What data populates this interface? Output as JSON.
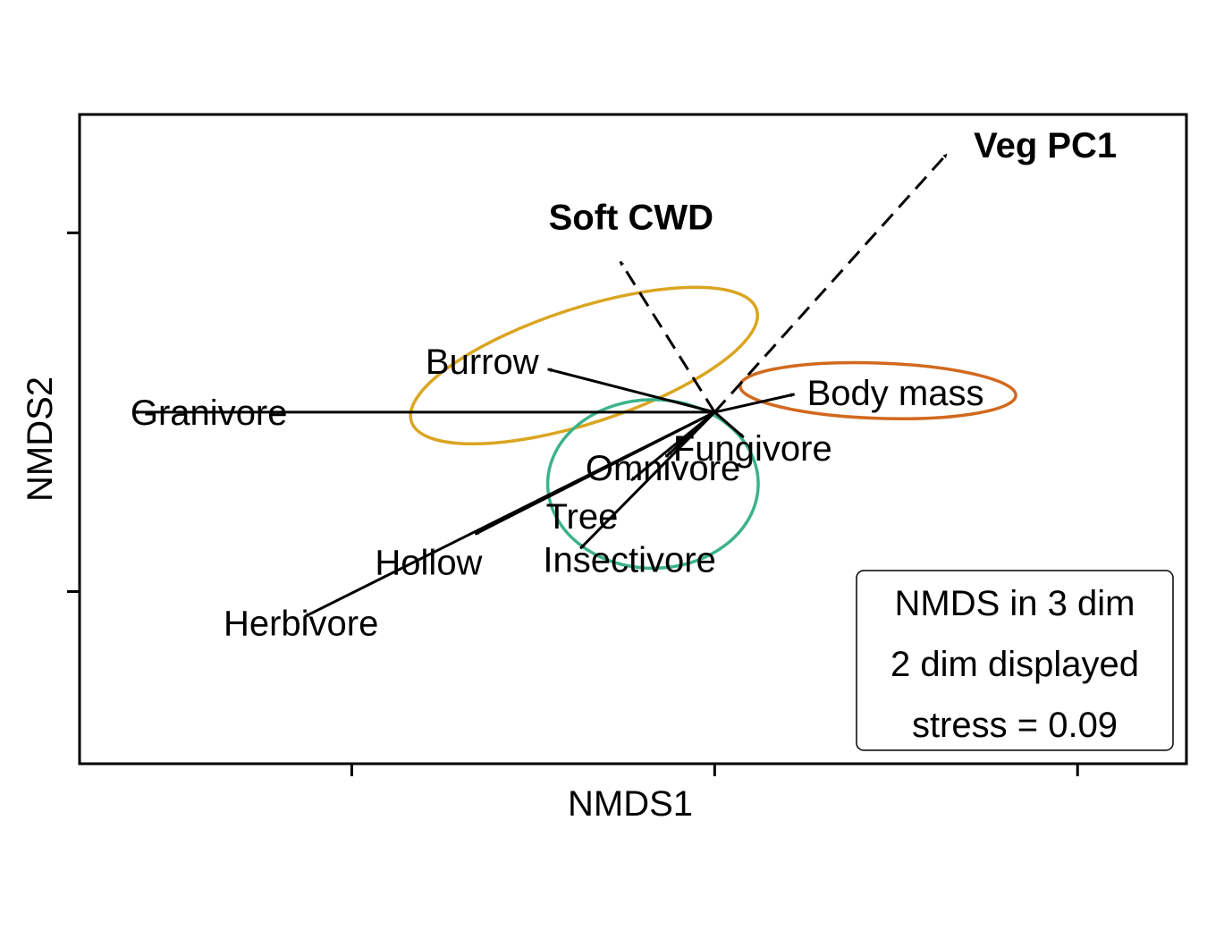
{
  "chart_data": {
    "type": "scatter",
    "xlabel": "NMDS1",
    "ylabel": "NMDS2",
    "xlim": [
      -1.75,
      1.3
    ],
    "ylim": [
      -0.98,
      0.83
    ],
    "x_ticks": [
      -1,
      0,
      1
    ],
    "y_ticks": [
      -0.5,
      0.5
    ],
    "grid": false,
    "vectors": [
      {
        "label": "Veg PC1",
        "x": 0.64,
        "y": 0.72,
        "style": "dashed",
        "bold": true
      },
      {
        "label": "Soft CWD",
        "x": -0.26,
        "y": 0.42,
        "style": "dashed",
        "bold": true
      },
      {
        "label": "Burrow",
        "x": -0.46,
        "y": 0.12,
        "style": "solid",
        "bold": false
      },
      {
        "label": "Body mass",
        "x": 0.22,
        "y": 0.05,
        "style": "solid",
        "bold": false
      },
      {
        "label": "Granivore",
        "x": -1.6,
        "y": 0.0,
        "style": "solid",
        "bold": false
      },
      {
        "label": "Fungivore",
        "x": 0.08,
        "y": -0.07,
        "style": "solid",
        "bold": false
      },
      {
        "label": "Omnivore",
        "x": -0.13,
        "y": -0.12,
        "style": "solid",
        "bold": false
      },
      {
        "label": "Tree",
        "x": -0.23,
        "y": -0.19,
        "style": "solid",
        "bold": false
      },
      {
        "label": "Insectivore",
        "x": -0.37,
        "y": -0.38,
        "style": "solid",
        "bold": false
      },
      {
        "label": "Hollow",
        "x": -0.66,
        "y": -0.34,
        "style": "solid",
        "bold": false
      },
      {
        "label": "Herbivore",
        "x": -1.13,
        "y": -0.57,
        "style": "solid",
        "bold": false
      }
    ],
    "ellipses": [
      {
        "color": "#DAA520",
        "cx": -0.36,
        "cy": 0.13,
        "rx": 0.5,
        "ry": 0.16,
        "angle": -18
      },
      {
        "color": "#D2691E",
        "cx": 0.45,
        "cy": 0.06,
        "rx": 0.38,
        "ry": 0.077,
        "angle": 2
      },
      {
        "color": "#3CB38A",
        "cx": -0.17,
        "cy": -0.2,
        "rx": 0.29,
        "ry": 0.235,
        "angle": 0
      }
    ],
    "legend": {
      "position": "bottom-right",
      "lines": [
        "NMDS in 3 dim",
        "2 dim displayed",
        "stress = 0.09"
      ]
    }
  }
}
